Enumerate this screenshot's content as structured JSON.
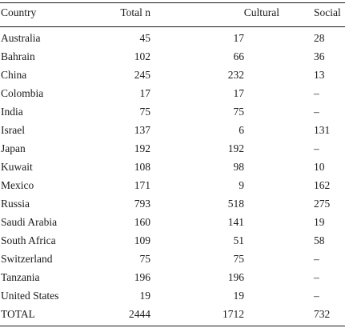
{
  "table": {
    "headers": {
      "country": "Country",
      "total": "Total n",
      "cultural": "Cultural",
      "social": "Social"
    },
    "rows": [
      {
        "country": "Australia",
        "total": "45",
        "cultural": "17",
        "social": "28"
      },
      {
        "country": "Bahrain",
        "total": "102",
        "cultural": "66",
        "social": "36"
      },
      {
        "country": "China",
        "total": "245",
        "cultural": "232",
        "social": "13"
      },
      {
        "country": "Colombia",
        "total": "17",
        "cultural": "17",
        "social": "–"
      },
      {
        "country": "India",
        "total": "75",
        "cultural": "75",
        "social": "–"
      },
      {
        "country": "Israel",
        "total": "137",
        "cultural": "6",
        "social": "131"
      },
      {
        "country": "Japan",
        "total": "192",
        "cultural": "192",
        "social": "–"
      },
      {
        "country": "Kuwait",
        "total": "108",
        "cultural": "98",
        "social": "10"
      },
      {
        "country": "Mexico",
        "total": "171",
        "cultural": "9",
        "social": "162"
      },
      {
        "country": "Russia",
        "total": "793",
        "cultural": "518",
        "social": "275"
      },
      {
        "country": "Saudi Arabia",
        "total": "160",
        "cultural": "141",
        "social": "19"
      },
      {
        "country": "South Africa",
        "total": "109",
        "cultural": "51",
        "social": "58"
      },
      {
        "country": "Switzerland",
        "total": "75",
        "cultural": "75",
        "social": "–"
      },
      {
        "country": "Tanzania",
        "total": "196",
        "cultural": "196",
        "social": "–"
      },
      {
        "country": "United States",
        "total": "19",
        "cultural": "19",
        "social": "–"
      },
      {
        "country": "TOTAL",
        "total": "2444",
        "cultural": "1712",
        "social": "732"
      }
    ]
  }
}
